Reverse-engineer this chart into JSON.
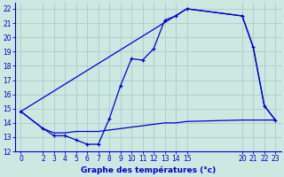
{
  "xlabel": "Graphe des températures (°c)",
  "bg_color": "#cce8e0",
  "grid_color": "#aacccc",
  "line_color": "#0000cc",
  "line1_x": [
    0,
    2,
    3,
    4,
    5,
    6,
    7,
    8,
    9,
    10,
    11,
    12,
    13,
    14,
    15,
    20,
    21,
    22,
    23
  ],
  "line1_y": [
    14.8,
    13.6,
    13.1,
    13.1,
    12.8,
    12.5,
    12.5,
    14.3,
    16.6,
    18.5,
    18.4,
    19.2,
    21.2,
    21.5,
    22.0,
    21.5,
    19.3,
    15.2,
    14.2
  ],
  "line2_x": [
    0,
    15,
    20,
    21,
    22,
    23
  ],
  "line2_y": [
    14.8,
    22.0,
    21.5,
    19.3,
    15.2,
    14.2
  ],
  "line3_x": [
    0,
    2,
    3,
    4,
    5,
    6,
    7,
    8,
    9,
    10,
    11,
    12,
    13,
    14,
    15,
    20,
    21,
    22,
    23
  ],
  "line3_y": [
    14.8,
    13.6,
    13.3,
    13.3,
    13.4,
    13.4,
    13.4,
    13.5,
    13.6,
    13.7,
    13.8,
    13.9,
    14.0,
    14.0,
    14.1,
    14.2,
    14.2,
    14.2,
    14.2
  ],
  "xlim": [
    -0.5,
    23.5
  ],
  "ylim": [
    12,
    22.4
  ],
  "xticks": [
    0,
    2,
    3,
    4,
    5,
    6,
    7,
    8,
    9,
    10,
    11,
    12,
    13,
    14,
    15,
    20,
    21,
    22,
    23
  ],
  "yticks": [
    12,
    13,
    14,
    15,
    16,
    17,
    18,
    19,
    20,
    21,
    22
  ]
}
